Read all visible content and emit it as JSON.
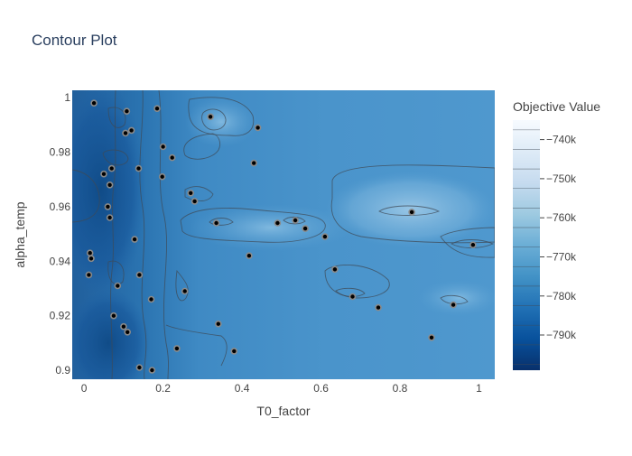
{
  "chart_data": {
    "type": "contour",
    "title": "Contour Plot",
    "xlabel": "T0_factor",
    "ylabel": "alpha_temp",
    "xlim": [
      -0.03,
      1.04
    ],
    "ylim": [
      0.8967,
      1.0027
    ],
    "x_ticks": [
      0,
      0.2,
      0.4,
      0.6,
      0.8,
      1
    ],
    "x_tick_labels": [
      "0",
      "0.2",
      "0.4",
      "0.6",
      "0.8",
      "1"
    ],
    "y_ticks": [
      0.9,
      0.92,
      0.94,
      0.96,
      0.98,
      1
    ],
    "y_tick_labels": [
      "0.9",
      "0.92",
      "0.94",
      "0.96",
      "0.98",
      "1"
    ],
    "colorbar": {
      "title": "Objective Value",
      "range": [
        -799000,
        -735000
      ],
      "ticks": [
        -740000,
        -750000,
        -760000,
        -770000,
        -780000,
        -790000
      ],
      "tick_labels": [
        "−740k",
        "−750k",
        "−760k",
        "−770k",
        "−780k",
        "−790k"
      ],
      "colorscale": [
        "#08306b",
        "#08519c",
        "#2171b5",
        "#4292c6",
        "#6baed6",
        "#9ecae1",
        "#c6dbef",
        "#deebf7",
        "#f7fbff"
      ]
    },
    "grid": false,
    "trials": [
      {
        "x": 0.025,
        "y": 0.998
      },
      {
        "x": 0.108,
        "y": 0.995
      },
      {
        "x": 0.185,
        "y": 0.996
      },
      {
        "x": 0.32,
        "y": 0.993
      },
      {
        "x": 0.44,
        "y": 0.989
      },
      {
        "x": 0.105,
        "y": 0.987
      },
      {
        "x": 0.12,
        "y": 0.988
      },
      {
        "x": 0.2,
        "y": 0.982
      },
      {
        "x": 0.223,
        "y": 0.978
      },
      {
        "x": 0.43,
        "y": 0.976
      },
      {
        "x": 0.05,
        "y": 0.972
      },
      {
        "x": 0.07,
        "y": 0.974
      },
      {
        "x": 0.138,
        "y": 0.974
      },
      {
        "x": 0.198,
        "y": 0.971
      },
      {
        "x": 0.065,
        "y": 0.968
      },
      {
        "x": 0.27,
        "y": 0.965
      },
      {
        "x": 0.28,
        "y": 0.962
      },
      {
        "x": 0.06,
        "y": 0.96
      },
      {
        "x": 0.065,
        "y": 0.956
      },
      {
        "x": 0.335,
        "y": 0.954
      },
      {
        "x": 0.49,
        "y": 0.954
      },
      {
        "x": 0.535,
        "y": 0.955
      },
      {
        "x": 0.56,
        "y": 0.952
      },
      {
        "x": 0.83,
        "y": 0.958
      },
      {
        "x": 0.128,
        "y": 0.948
      },
      {
        "x": 0.61,
        "y": 0.949
      },
      {
        "x": 0.985,
        "y": 0.946
      },
      {
        "x": 0.015,
        "y": 0.943
      },
      {
        "x": 0.018,
        "y": 0.941
      },
      {
        "x": 0.418,
        "y": 0.942
      },
      {
        "x": 0.635,
        "y": 0.937
      },
      {
        "x": 0.14,
        "y": 0.935
      },
      {
        "x": 0.012,
        "y": 0.935
      },
      {
        "x": 0.085,
        "y": 0.931
      },
      {
        "x": 0.255,
        "y": 0.929
      },
      {
        "x": 0.68,
        "y": 0.927
      },
      {
        "x": 0.17,
        "y": 0.926
      },
      {
        "x": 0.935,
        "y": 0.924
      },
      {
        "x": 0.745,
        "y": 0.923
      },
      {
        "x": 0.075,
        "y": 0.92
      },
      {
        "x": 0.1,
        "y": 0.916
      },
      {
        "x": 0.34,
        "y": 0.917
      },
      {
        "x": 0.11,
        "y": 0.914
      },
      {
        "x": 0.88,
        "y": 0.912
      },
      {
        "x": 0.235,
        "y": 0.908
      },
      {
        "x": 0.38,
        "y": 0.907
      },
      {
        "x": 0.14,
        "y": 0.901
      },
      {
        "x": 0.172,
        "y": 0.9
      }
    ]
  }
}
